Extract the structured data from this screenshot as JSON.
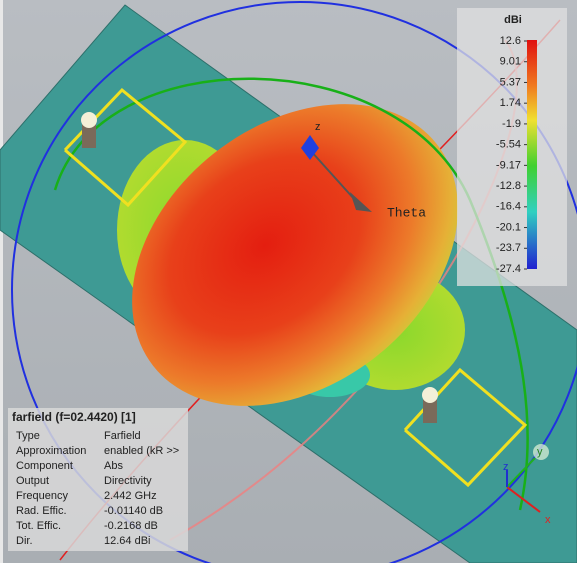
{
  "colorbar": {
    "unit": "dBi",
    "ticks": [
      "12.6",
      "9.01",
      "5.37",
      "1.74",
      "-1.9",
      "-5.54",
      "-9.17",
      "-12.8",
      "-16.4",
      "-20.1",
      "-23.7",
      "-27.4"
    ]
  },
  "axes_labels": {
    "theta": "Theta",
    "z": "z",
    "triad_z": "z",
    "triad_y": "y",
    "triad_x": "x"
  },
  "info": {
    "title": "farfield (f=02.4420) [1]",
    "rows": [
      [
        "Type",
        "Farfield"
      ],
      [
        "Approximation",
        "enabled (kR >>"
      ],
      [
        "Component",
        "Abs"
      ],
      [
        "Output",
        "Directivity"
      ],
      [
        "Frequency",
        "2.442 GHz"
      ],
      [
        "Rad. Effic.",
        "-0.01140 dB"
      ],
      [
        "Tot. Effic.",
        "-0.2168 dB"
      ],
      [
        "Dir.",
        "12.64 dBi"
      ]
    ]
  }
}
